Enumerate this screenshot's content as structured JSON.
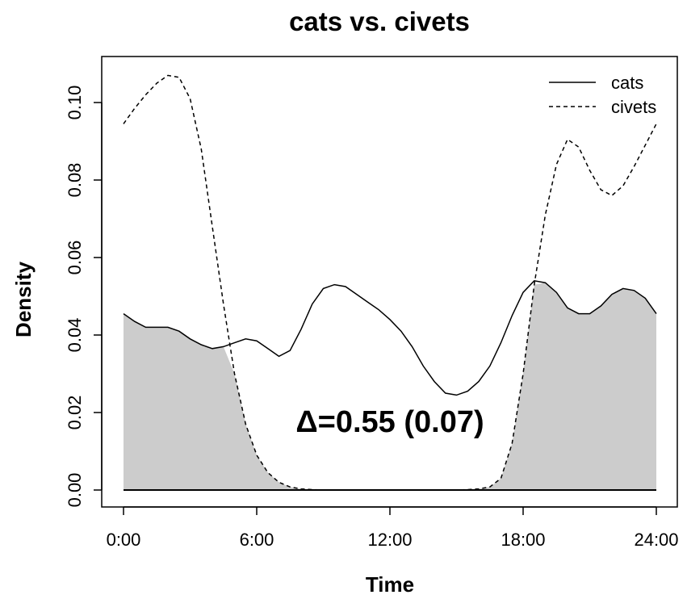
{
  "chart_data": {
    "type": "line",
    "title": "cats vs. civets",
    "xlabel": "Time",
    "ylabel": "Density",
    "xlim": [
      0,
      24
    ],
    "ylim": [
      0,
      0.11
    ],
    "x_ticks": [
      0,
      6,
      12,
      18,
      24
    ],
    "x_tick_labels": [
      "0:00",
      "6:00",
      "12:00",
      "18:00",
      "24:00"
    ],
    "y_ticks": [
      0,
      0.02,
      0.04,
      0.06,
      0.08,
      0.1
    ],
    "y_tick_labels": [
      "0.00",
      "0.02",
      "0.04",
      "0.06",
      "0.08",
      "0.10"
    ],
    "grid": false,
    "legend_position": "top-right",
    "overlap_fill_color": "#cccccc",
    "annotation": "Δ=0.55 (0.07)",
    "series": [
      {
        "name": "cats",
        "line_style": "solid",
        "x": [
          0,
          0.5,
          1,
          1.5,
          2,
          2.5,
          3,
          3.5,
          4,
          4.5,
          5,
          5.5,
          6,
          6.5,
          7,
          7.5,
          8,
          8.5,
          9,
          9.5,
          10,
          10.5,
          11,
          11.5,
          12,
          12.5,
          13,
          13.5,
          14,
          14.5,
          15,
          15.5,
          16,
          16.5,
          17,
          17.5,
          18,
          18.5,
          19,
          19.5,
          20,
          20.5,
          21,
          21.5,
          22,
          22.5,
          23,
          23.5,
          24
        ],
        "y": [
          0.0455,
          0.0435,
          0.042,
          0.042,
          0.042,
          0.041,
          0.039,
          0.0375,
          0.0365,
          0.037,
          0.038,
          0.039,
          0.0385,
          0.0365,
          0.0345,
          0.036,
          0.0415,
          0.048,
          0.052,
          0.053,
          0.0525,
          0.0505,
          0.0485,
          0.0465,
          0.044,
          0.041,
          0.037,
          0.032,
          0.028,
          0.025,
          0.0245,
          0.0255,
          0.028,
          0.032,
          0.038,
          0.045,
          0.051,
          0.054,
          0.0535,
          0.051,
          0.047,
          0.0455,
          0.0455,
          0.0475,
          0.0505,
          0.052,
          0.0515,
          0.0495,
          0.0455
        ]
      },
      {
        "name": "civets",
        "line_style": "dashed",
        "x": [
          0,
          0.5,
          1,
          1.5,
          2,
          2.5,
          3,
          3.5,
          4,
          4.5,
          5,
          5.5,
          6,
          6.5,
          7,
          7.5,
          8,
          8.5,
          9,
          9.5,
          10,
          10.5,
          11,
          11.5,
          12,
          12.5,
          13,
          13.5,
          14,
          14.5,
          15,
          15.5,
          16,
          16.5,
          17,
          17.5,
          18,
          18.5,
          19,
          19.5,
          20,
          20.5,
          21,
          21.5,
          22,
          22.5,
          23,
          23.5,
          24
        ],
        "y": [
          0.0945,
          0.0985,
          0.102,
          0.105,
          0.107,
          0.1065,
          0.101,
          0.088,
          0.068,
          0.048,
          0.03,
          0.017,
          0.009,
          0.0045,
          0.002,
          0.0008,
          0.0003,
          0.0001,
          0,
          0,
          0,
          0,
          0,
          0,
          0,
          0,
          0,
          0,
          0,
          0,
          0,
          0.0001,
          0.0003,
          0.0008,
          0.003,
          0.012,
          0.03,
          0.053,
          0.071,
          0.084,
          0.0905,
          0.0885,
          0.0825,
          0.0775,
          0.076,
          0.0785,
          0.0835,
          0.089,
          0.0945
        ]
      }
    ]
  }
}
